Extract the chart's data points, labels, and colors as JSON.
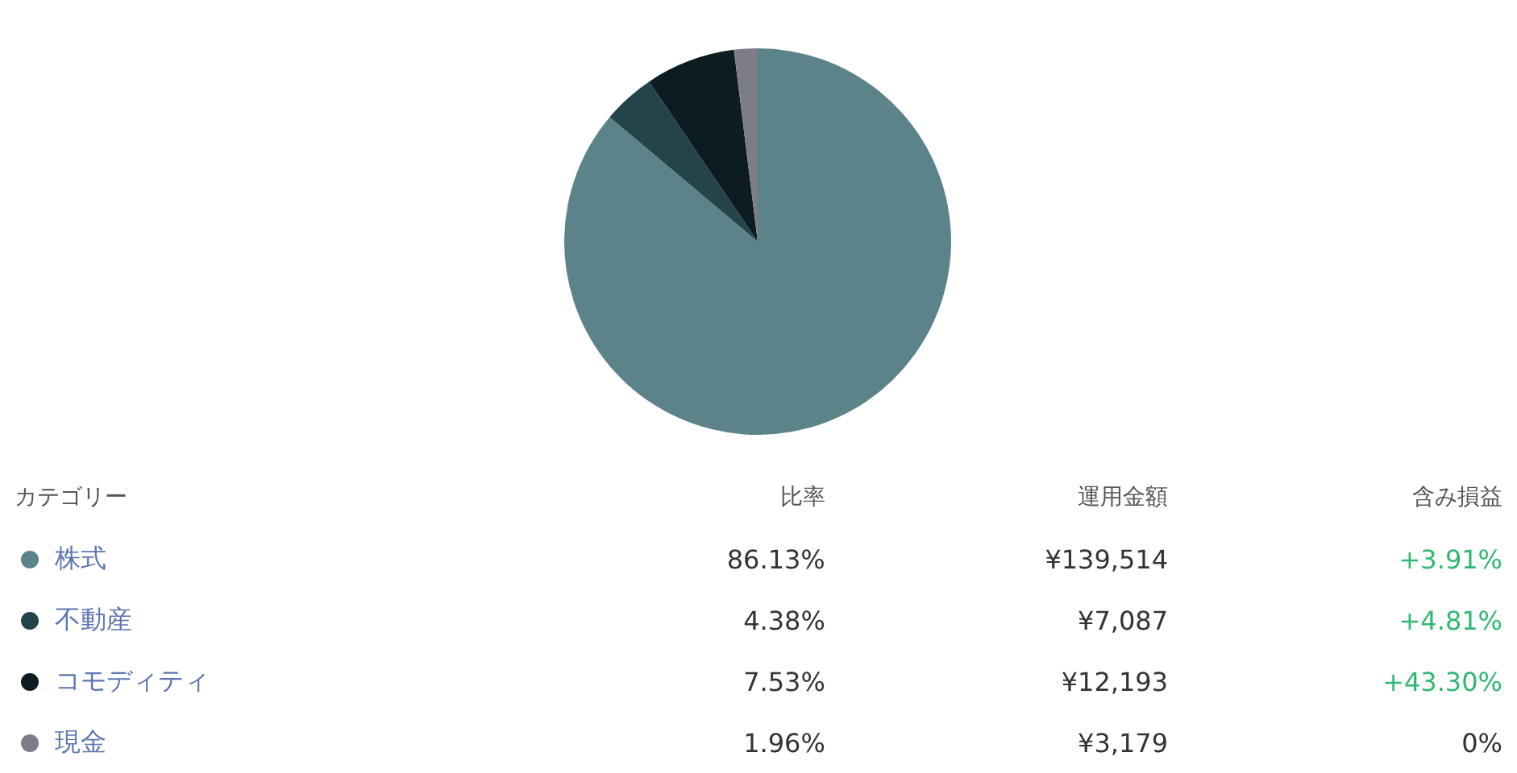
{
  "chart_data": {
    "type": "pie",
    "categories": [
      "株式",
      "不動産",
      "コモディティ",
      "現金"
    ],
    "values": [
      139514,
      7087,
      12193,
      3179
    ],
    "value_labels": [
      "¥139,514",
      "¥7,087",
      "¥12,193",
      "¥3,179"
    ],
    "colors": [
      "#5b8389",
      "#22444a",
      "#0d1c21",
      "#7d7d8a"
    ],
    "legend": "bottom",
    "annotations": [
      "カテゴリー",
      "比率",
      "運用金額",
      "含み損益",
      "86.13%",
      "+3.91%",
      "4.38%",
      "+4.81%",
      "7.53%",
      "+43.30%",
      "1.96%",
      "0%"
    ]
  }
}
